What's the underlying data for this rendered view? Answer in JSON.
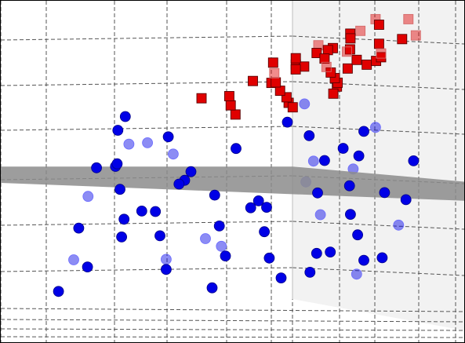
{
  "chart_data": {
    "type": "scatter",
    "projection": "3d",
    "title": "",
    "xlabel": "",
    "ylabel": "",
    "zlabel": "",
    "tick_labels_visible": false,
    "grid": true,
    "legend": "none",
    "colors": {
      "class_a": "#e00000",
      "class_b": "#0000e6",
      "plane": "#8c8c8c",
      "grid": "#555555"
    },
    "series": [
      {
        "marker": "square",
        "color": "#e00000",
        "points": [
          [
            0.0,
            3.12
          ],
          [
            0.133,
            3.15
          ],
          [
            0.229,
            3.19
          ],
          [
            0.321,
            3.22
          ],
          [
            0.401,
            3.25
          ],
          [
            0.469,
            3.29
          ],
          [
            0.534,
            3.31
          ],
          [
            0.573,
            3.35
          ],
          [
            0.603,
            3.38
          ],
          [
            0.617,
            3.41
          ],
          [
            0.632,
            3.44
          ],
          [
            0.651,
            3.47
          ],
          [
            0.657,
            3.5
          ],
          [
            0.705,
            3.51
          ],
          [
            0.768,
            3.54
          ],
          [
            0.826,
            3.56
          ],
          [
            0.844,
            3.57
          ],
          [
            0.881,
            3.54
          ],
          [
            0.925,
            3.51
          ],
          [
            0.96,
            3.48
          ],
          [
            0.981,
            3.45
          ],
          [
            0.999,
            3.41
          ],
          [
            0.993,
            3.37
          ],
          [
            0.975,
            3.33
          ],
          [
            0.94,
            3.29
          ],
          [
            0.909,
            3.25
          ],
          [
            0.858,
            3.21
          ],
          [
            0.798,
            3.17
          ],
          [
            0.742,
            3.13
          ],
          [
            0.663,
            3.1
          ],
          [
            0.585,
            3.07
          ],
          [
            0.52,
            3.04
          ],
          [
            0.455,
            3.01
          ],
          [
            0.375,
            2.98
          ],
          [
            0.296,
            2.96
          ],
          [
            0.228,
            2.94
          ],
          [
            0.151,
            2.93
          ],
          [
            0.08,
            2.92
          ],
          [
            0.025,
            2.91
          ],
          [
            -0.045,
            2.9
          ],
          [
            0.612,
            3.02
          ],
          [
            0.694,
            3.18
          ],
          [
            0.769,
            3.05
          ],
          [
            0.513,
            3.15
          ],
          [
            0.401,
            3.32
          ]
        ]
      },
      {
        "marker": "circle",
        "color": "#0000e6",
        "points": [
          [
            0.071,
            1.02
          ],
          [
            0.151,
            0.98
          ],
          [
            0.228,
            1.05
          ],
          [
            0.306,
            0.95
          ],
          [
            0.375,
            1.01
          ],
          [
            0.455,
            0.97
          ],
          [
            0.52,
            1.04
          ],
          [
            0.585,
            0.93
          ],
          [
            0.663,
            1.0
          ],
          [
            0.742,
            0.96
          ],
          [
            0.798,
            1.07
          ],
          [
            0.858,
            0.99
          ],
          [
            0.909,
            0.94
          ],
          [
            0.94,
            1.03
          ],
          [
            0.975,
            0.97
          ],
          [
            0.993,
            1.01
          ],
          [
            0.981,
            0.92
          ],
          [
            0.96,
            0.99
          ],
          [
            0.925,
            1.05
          ],
          [
            0.881,
            0.95
          ],
          [
            0.826,
            0.91
          ],
          [
            0.768,
            1.02
          ],
          [
            0.705,
            0.98
          ],
          [
            0.657,
            0.9
          ],
          [
            0.603,
            1.06
          ],
          [
            0.534,
            0.94
          ],
          [
            0.469,
            1.0
          ],
          [
            0.401,
            0.93
          ],
          [
            0.321,
            1.03
          ],
          [
            0.229,
            0.97
          ],
          [
            0.133,
            0.91
          ],
          [
            0.0,
            0.99
          ],
          [
            -0.133,
            1.04
          ],
          [
            -0.229,
            0.95
          ],
          [
            -0.321,
            1.01
          ],
          [
            -0.401,
            0.92
          ],
          [
            -0.469,
            0.98
          ],
          [
            -0.534,
            1.06
          ],
          [
            -0.603,
            0.97
          ],
          [
            -0.657,
            0.93
          ],
          [
            -0.705,
            1.02
          ],
          [
            -0.768,
            0.96
          ],
          [
            -0.826,
            1.0
          ],
          [
            -0.881,
            0.94
          ],
          [
            -0.925,
            1.05
          ],
          [
            -0.96,
            0.98
          ],
          [
            -0.993,
            1.03
          ],
          [
            -0.975,
            0.91
          ],
          [
            -0.94,
            0.99
          ],
          [
            -0.909,
            1.07
          ],
          [
            -0.858,
            0.95
          ],
          [
            -0.798,
            1.01
          ],
          [
            -0.742,
            0.92
          ],
          [
            -0.663,
            1.04
          ],
          [
            -0.585,
            0.97
          ],
          [
            -0.52,
            1.02
          ],
          [
            -0.455,
            0.93
          ],
          [
            -0.375,
            0.99
          ],
          [
            -0.306,
            1.05
          ],
          [
            -0.228,
            0.96
          ],
          [
            -0.151,
            1.03
          ],
          [
            -0.071,
            0.94
          ],
          [
            0.555,
            0.9
          ],
          [
            0.612,
            1.07
          ]
        ]
      }
    ],
    "separating_plane": {
      "z": 2.0
    }
  }
}
